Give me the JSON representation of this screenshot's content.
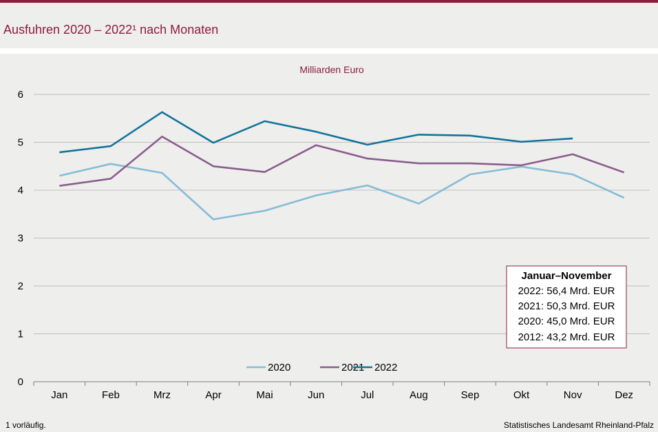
{
  "header": {
    "title": "Ausfuhren 2020 – 2022¹ nach Monaten"
  },
  "footer": {
    "footnote": "1 vorläufig.",
    "source": "Statistisches Landesamt Rheinland-Pfalz"
  },
  "colors": {
    "accent": "#8c1d3b",
    "series_2020": "#85bcd6",
    "series_2021": "#8a5c8e",
    "series_2022": "#11739c"
  },
  "infobox": {
    "title": "Januar–November",
    "lines": [
      "2022: 56,4 Mrd. EUR",
      "2021: 50,3 Mrd. EUR",
      "2020: 45,0 Mrd. EUR",
      "2012: 43,2 Mrd. EUR"
    ]
  },
  "chart_data": {
    "type": "line",
    "title": "",
    "subtitle": "Milliarden Euro",
    "xlabel": "",
    "ylabel": "",
    "ylim": [
      0,
      6
    ],
    "yticks": [
      0,
      1,
      2,
      3,
      4,
      5,
      6
    ],
    "grid": true,
    "legend_position": "bottom-center",
    "categories": [
      "Jan",
      "Feb",
      "Mrz",
      "Apr",
      "Mai",
      "Jun",
      "Jul",
      "Aug",
      "Sep",
      "Okt",
      "Nov",
      "Dez"
    ],
    "series": [
      {
        "name": "2020",
        "values": [
          4.3,
          4.55,
          4.36,
          3.39,
          3.57,
          3.89,
          4.1,
          3.72,
          4.33,
          4.49,
          4.33,
          3.84
        ]
      },
      {
        "name": "2021",
        "values": [
          4.09,
          4.24,
          5.12,
          4.5,
          4.38,
          4.94,
          4.66,
          4.56,
          4.56,
          4.52,
          4.75,
          4.37
        ]
      },
      {
        "name": "2022",
        "values": [
          4.79,
          4.92,
          5.63,
          4.99,
          5.44,
          5.22,
          4.95,
          5.16,
          5.14,
          5.01,
          5.08,
          null
        ]
      }
    ]
  }
}
